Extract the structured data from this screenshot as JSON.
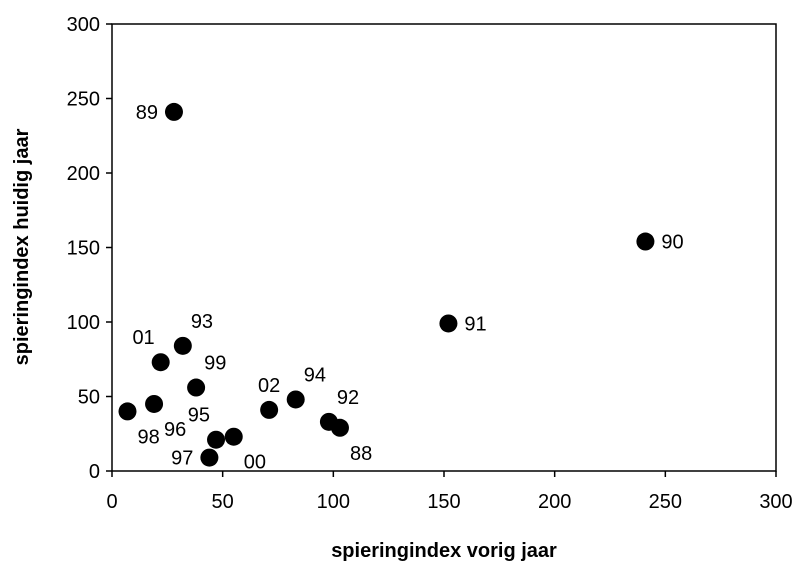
{
  "chart_data": {
    "type": "scatter",
    "title": "",
    "xlabel": "spieringindex vorig jaar",
    "ylabel": "spieringindex huidig jaar",
    "xlim": [
      0,
      300
    ],
    "ylim": [
      0,
      300
    ],
    "xticks": [
      "0",
      "50",
      "100",
      "150",
      "200",
      "250",
      "300"
    ],
    "yticks": [
      "0",
      "50",
      "100",
      "150",
      "200",
      "250",
      "300"
    ],
    "grid": false,
    "legend": "none",
    "marker_color": "#000000",
    "points": [
      {
        "label": "88",
        "x": 103,
        "y": 29,
        "label_pos": "below-right"
      },
      {
        "label": "89",
        "x": 28,
        "y": 241,
        "label_pos": "left"
      },
      {
        "label": "90",
        "x": 241,
        "y": 154,
        "label_pos": "right"
      },
      {
        "label": "91",
        "x": 152,
        "y": 99,
        "label_pos": "right"
      },
      {
        "label": "92",
        "x": 98,
        "y": 33,
        "label_pos": "above-right"
      },
      {
        "label": "93",
        "x": 32,
        "y": 84,
        "label_pos": "above-right"
      },
      {
        "label": "94",
        "x": 83,
        "y": 48,
        "label_pos": "above-right"
      },
      {
        "label": "95",
        "x": 47,
        "y": 21,
        "label_pos": "above-left"
      },
      {
        "label": "96",
        "x": 19,
        "y": 45,
        "label_pos": "below-right"
      },
      {
        "label": "97",
        "x": 44,
        "y": 9,
        "label_pos": "left"
      },
      {
        "label": "98",
        "x": 7,
        "y": 40,
        "label_pos": "below-right"
      },
      {
        "label": "99",
        "x": 38,
        "y": 56,
        "label_pos": "above-right"
      },
      {
        "label": "00",
        "x": 55,
        "y": 23,
        "label_pos": "below-right"
      },
      {
        "label": "01",
        "x": 22,
        "y": 73,
        "label_pos": "above-left"
      },
      {
        "label": "02",
        "x": 71,
        "y": 41,
        "label_pos": "above"
      }
    ]
  }
}
